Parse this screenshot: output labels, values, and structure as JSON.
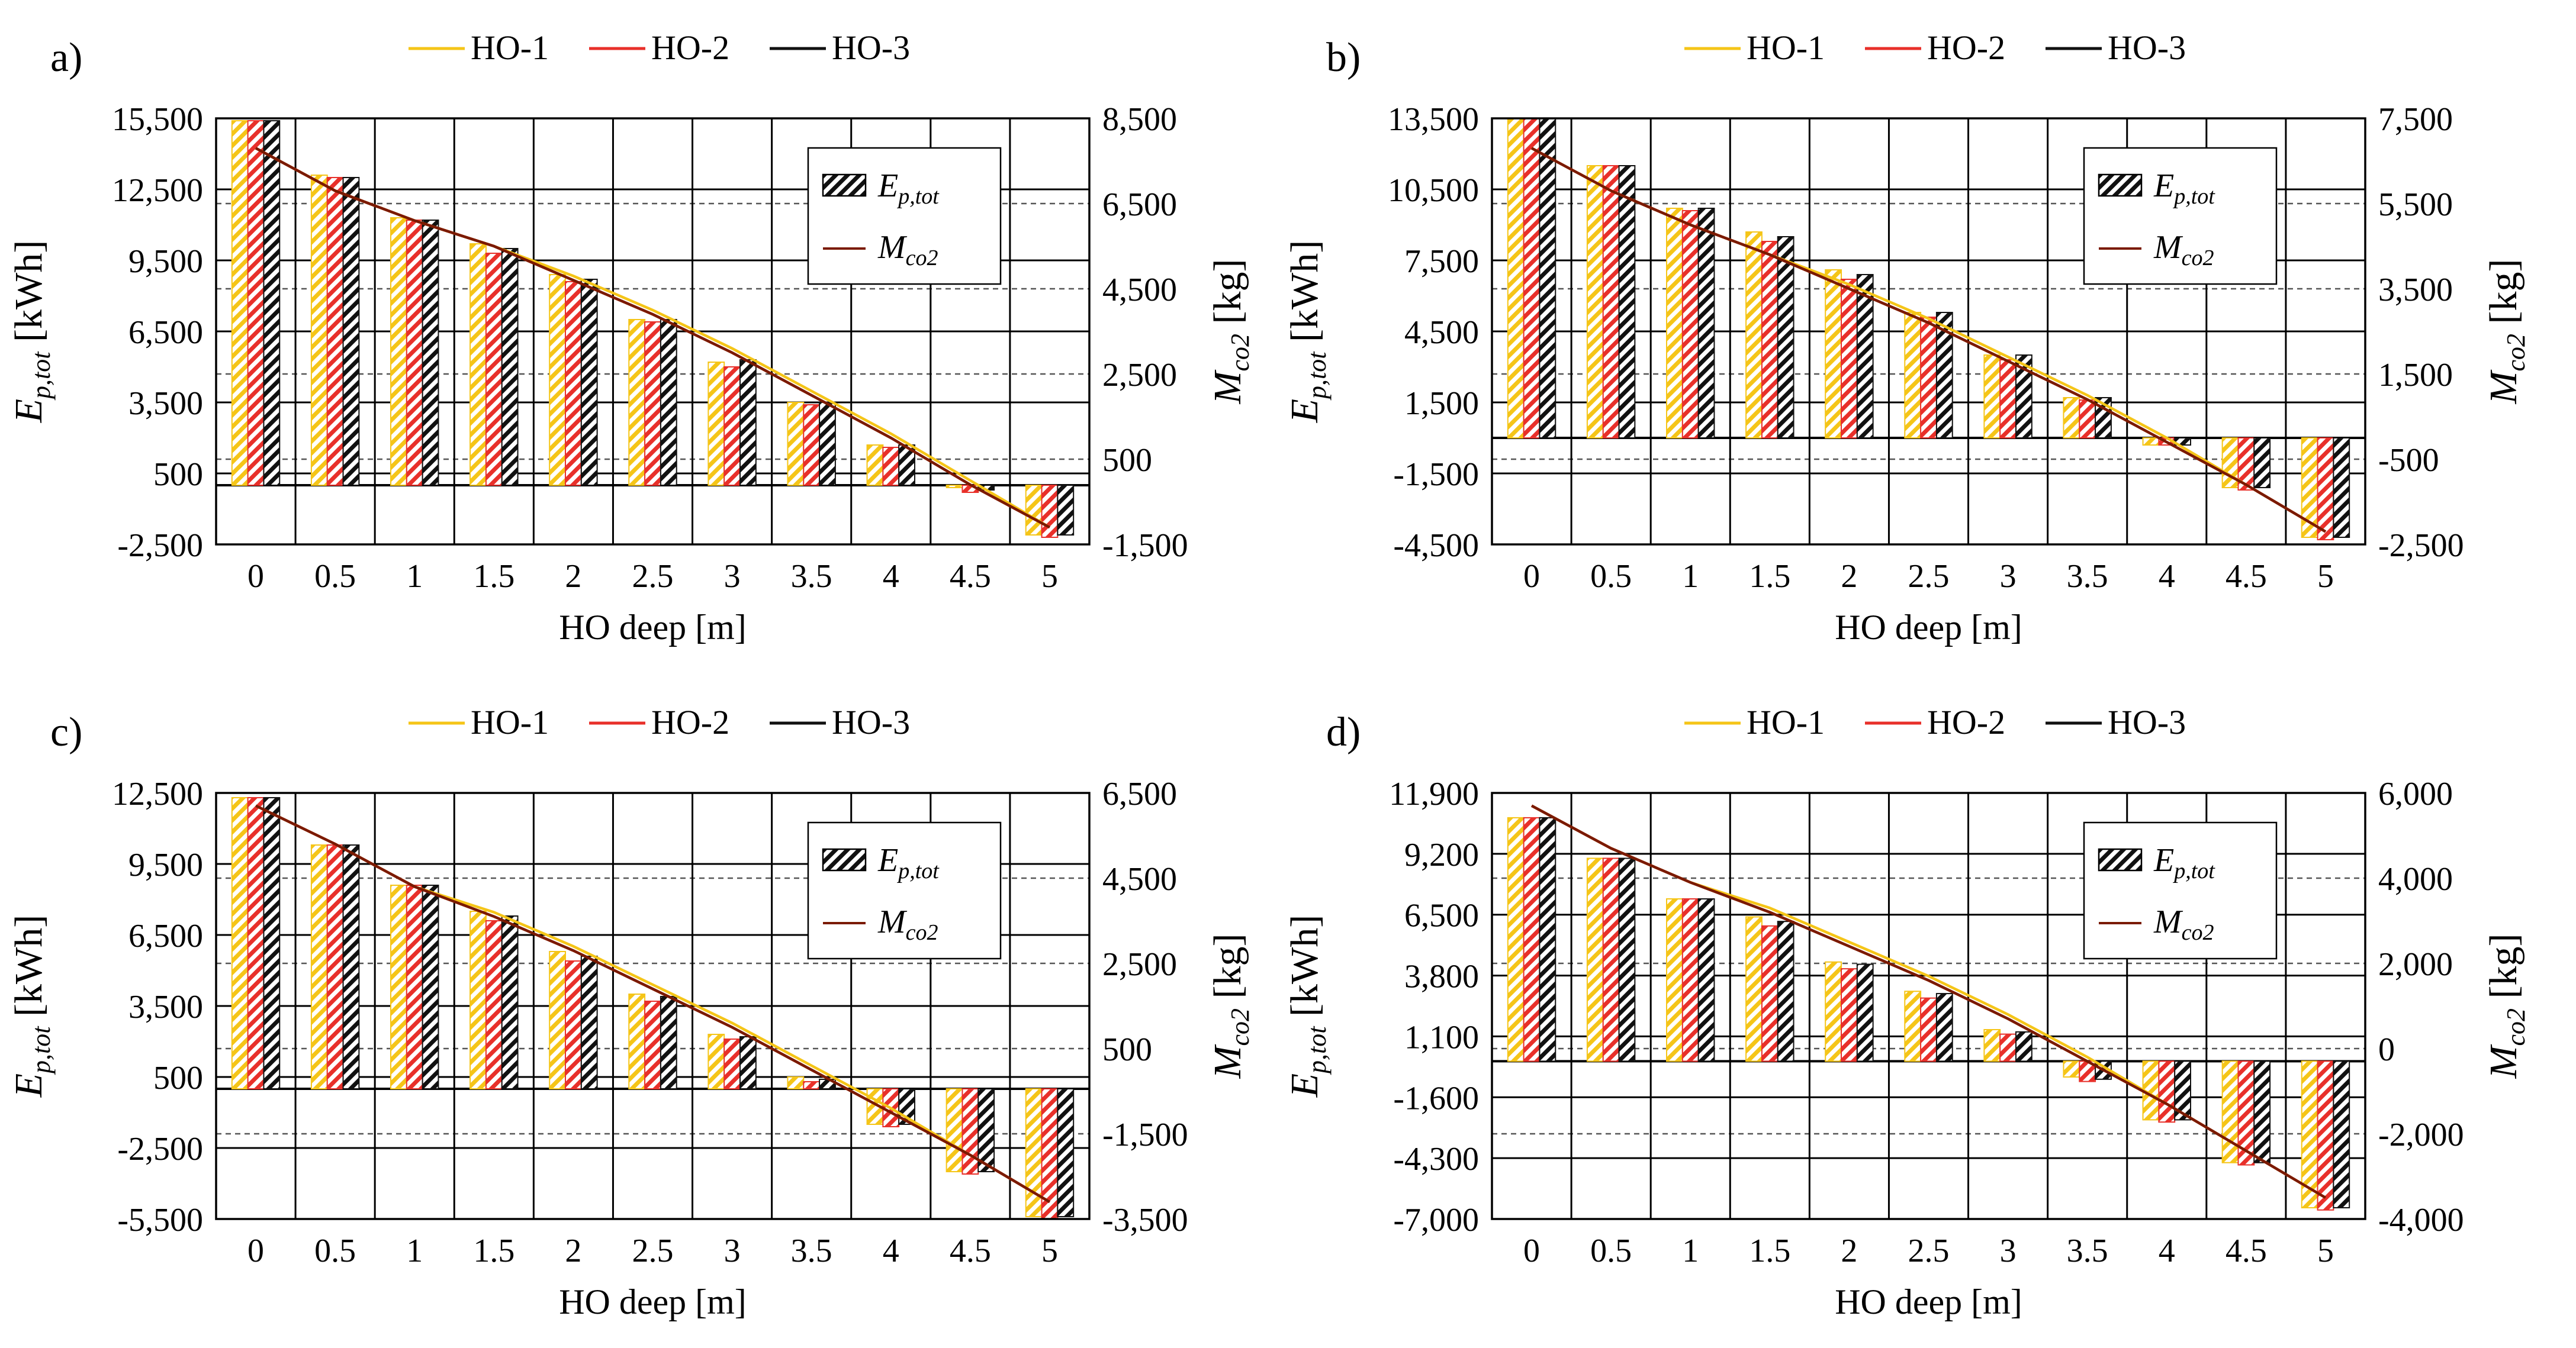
{
  "legend": {
    "series": [
      {
        "name": "HO-1",
        "color": "#F5C518"
      },
      {
        "name": "HO-2",
        "color": "#E8302A"
      },
      {
        "name": "HO-3",
        "color": "#111111"
      }
    ],
    "inner": [
      {
        "kind": "bar",
        "label": "E",
        "sub": "p,tot"
      },
      {
        "kind": "line",
        "label": "M",
        "sub": "co2"
      }
    ]
  },
  "colors": {
    "line": "#7A1A00",
    "grid": "#000000"
  },
  "chart_data": [
    {
      "panel": "a)",
      "type": "bar",
      "xlabel": "HO deep [m]",
      "ylabel": {
        "main": "E",
        "sub": "p,tot",
        "unit": " [kWh]"
      },
      "y2label": {
        "main": "M",
        "sub": "co2",
        "unit": " [kg]"
      },
      "categories": [
        "0",
        "0.5",
        "1",
        "1.5",
        "2",
        "2.5",
        "3",
        "3.5",
        "4",
        "4.5",
        "5"
      ],
      "ylim": [
        -2500,
        15500
      ],
      "yticks": [
        -2500,
        500,
        3500,
        6500,
        9500,
        12500,
        15500
      ],
      "yticklabels": [
        "-2,500",
        "500",
        "3,500",
        "6,500",
        "9,500",
        "12,500",
        "15,500"
      ],
      "y2lim": [
        -1500,
        8500
      ],
      "y2ticks": [
        -1500,
        500,
        2500,
        4500,
        6500,
        8500
      ],
      "y2ticklabels": [
        "-1,500",
        "500",
        "2,500",
        "4,500",
        "6,500",
        "8,500"
      ],
      "series": [
        {
          "name": "HO-1",
          "values": [
            15400,
            13100,
            11300,
            10200,
            8900,
            7000,
            5200,
            3500,
            1700,
            -100,
            -2100
          ]
        },
        {
          "name": "HO-2",
          "values": [
            15400,
            13000,
            11200,
            9800,
            8600,
            6900,
            5000,
            3400,
            1600,
            -300,
            -2200
          ]
        },
        {
          "name": "HO-3",
          "values": [
            15400,
            13000,
            11200,
            10000,
            8700,
            7000,
            5300,
            3500,
            1700,
            -200,
            -2100
          ]
        }
      ],
      "line_series": [
        {
          "name": "HO-1",
          "values": [
            7800,
            6800,
            6100,
            5500,
            4800,
            4000,
            3100,
            2100,
            1100,
            0,
            -1100
          ]
        },
        {
          "name": "HO-2",
          "values": [
            7800,
            6800,
            6100,
            5500,
            4700,
            3900,
            3000,
            2000,
            1000,
            -100,
            -1100
          ]
        },
        {
          "name": "HO-3",
          "values": [
            7800,
            6800,
            6100,
            5500,
            4700,
            3900,
            3000,
            2000,
            1000,
            -100,
            -1100
          ]
        }
      ]
    },
    {
      "panel": "b)",
      "type": "bar",
      "xlabel": "HO deep [m]",
      "ylabel": {
        "main": "E",
        "sub": "p,tot",
        "unit": " [kWh]"
      },
      "y2label": {
        "main": "M",
        "sub": "co2",
        "unit": " [kg]"
      },
      "categories": [
        "0",
        "0.5",
        "1",
        "1.5",
        "2",
        "2.5",
        "3",
        "3.5",
        "4",
        "4.5",
        "5"
      ],
      "ylim": [
        -4500,
        13500
      ],
      "yticks": [
        -4500,
        -1500,
        1500,
        4500,
        7500,
        10500,
        13500
      ],
      "yticklabels": [
        "-4,500",
        "-1,500",
        "1,500",
        "4,500",
        "7,500",
        "10,500",
        "13,500"
      ],
      "y2lim": [
        -2500,
        7500
      ],
      "y2ticks": [
        -2500,
        -500,
        1500,
        3500,
        5500,
        7500
      ],
      "y2ticklabels": [
        "-2,500",
        "-500",
        "1,500",
        "3,500",
        "5,500",
        "7,500"
      ],
      "series": [
        {
          "name": "HO-1",
          "values": [
            13500,
            11500,
            9700,
            8700,
            7100,
            5300,
            3500,
            1700,
            -300,
            -2100,
            -4200
          ]
        },
        {
          "name": "HO-2",
          "values": [
            13500,
            11500,
            9600,
            8300,
            6700,
            5100,
            3300,
            1600,
            -300,
            -2200,
            -4300
          ]
        },
        {
          "name": "HO-3",
          "values": [
            13500,
            11500,
            9700,
            8500,
            6900,
            5300,
            3500,
            1700,
            -300,
            -2100,
            -4200
          ]
        }
      ],
      "line_series": [
        {
          "name": "HO-1",
          "values": [
            6800,
            5800,
            5000,
            4300,
            3600,
            2800,
            1900,
            1000,
            0,
            -1100,
            -2200
          ]
        },
        {
          "name": "HO-2",
          "values": [
            6800,
            5800,
            5000,
            4300,
            3500,
            2700,
            1800,
            900,
            -100,
            -1100,
            -2200
          ]
        },
        {
          "name": "HO-3",
          "values": [
            6800,
            5800,
            5000,
            4300,
            3500,
            2700,
            1800,
            900,
            -100,
            -1100,
            -2200
          ]
        }
      ]
    },
    {
      "panel": "c)",
      "type": "bar",
      "xlabel": "HO deep [m]",
      "ylabel": {
        "main": "E",
        "sub": "p,tot",
        "unit": " [kWh]"
      },
      "y2label": {
        "main": "M",
        "sub": "co2",
        "unit": " [kg]"
      },
      "categories": [
        "0",
        "0.5",
        "1",
        "1.5",
        "2",
        "2.5",
        "3",
        "3.5",
        "4",
        "4.5",
        "5"
      ],
      "ylim": [
        -5500,
        12500
      ],
      "yticks": [
        -5500,
        -2500,
        500,
        3500,
        6500,
        9500,
        12500
      ],
      "yticklabels": [
        "-5,500",
        "-2,500",
        "500",
        "3,500",
        "6,500",
        "9,500",
        "12,500"
      ],
      "y2lim": [
        -3500,
        6500
      ],
      "y2ticks": [
        -3500,
        -1500,
        500,
        2500,
        4500,
        6500
      ],
      "y2ticklabels": [
        "-3,500",
        "-1,500",
        "500",
        "2,500",
        "4,500",
        "6,500"
      ],
      "series": [
        {
          "name": "HO-1",
          "values": [
            12300,
            10300,
            8600,
            7500,
            5800,
            4000,
            2300,
            500,
            -1500,
            -3500,
            -5400
          ]
        },
        {
          "name": "HO-2",
          "values": [
            12300,
            10300,
            8600,
            7100,
            5400,
            3700,
            2100,
            300,
            -1600,
            -3600,
            -5500
          ]
        },
        {
          "name": "HO-3",
          "values": [
            12300,
            10300,
            8600,
            7300,
            5600,
            3900,
            2200,
            400,
            -1500,
            -3500,
            -5400
          ]
        }
      ],
      "line_series": [
        {
          "name": "HO-1",
          "values": [
            6200,
            5300,
            4300,
            3700,
            2900,
            2000,
            1100,
            100,
            -900,
            -2000,
            -3100
          ]
        },
        {
          "name": "HO-2",
          "values": [
            6200,
            5300,
            4300,
            3600,
            2800,
            1900,
            1000,
            0,
            -1000,
            -2000,
            -3100
          ]
        },
        {
          "name": "HO-3",
          "values": [
            6200,
            5300,
            4300,
            3600,
            2800,
            1900,
            1000,
            0,
            -1000,
            -2000,
            -3100
          ]
        }
      ]
    },
    {
      "panel": "d)",
      "type": "bar",
      "xlabel": "HO deep [m]",
      "ylabel": {
        "main": "E",
        "sub": "p,tot",
        "unit": " [kWh]"
      },
      "y2label": {
        "main": "M",
        "sub": "co2",
        "unit": " [kg]"
      },
      "categories": [
        "0",
        "0.5",
        "1",
        "1.5",
        "2",
        "2.5",
        "3",
        "3.5",
        "4",
        "4.5",
        "5"
      ],
      "ylim": [
        -7000,
        11900
      ],
      "yticks": [
        -7000,
        -4300,
        -1600,
        1100,
        3800,
        6500,
        9200,
        11900
      ],
      "yticklabels": [
        "-7,000",
        "-4,300",
        "-1,600",
        "1,100",
        "3,800",
        "6,500",
        "9,200",
        "11,900"
      ],
      "y2lim": [
        -4000,
        6000
      ],
      "y2ticks": [
        -4000,
        -2000,
        0,
        2000,
        4000,
        6000
      ],
      "y2ticklabels": [
        "-4,000",
        "-2,000",
        "0",
        "2,000",
        "4,000",
        "6,000"
      ],
      "series": [
        {
          "name": "HO-1",
          "values": [
            10800,
            9000,
            7200,
            6400,
            4400,
            3100,
            1400,
            -700,
            -2600,
            -4500,
            -6500
          ]
        },
        {
          "name": "HO-2",
          "values": [
            10800,
            9000,
            7200,
            6000,
            4100,
            2800,
            1200,
            -900,
            -2700,
            -4600,
            -6600
          ]
        },
        {
          "name": "HO-3",
          "values": [
            10800,
            9000,
            7200,
            6200,
            4300,
            3000,
            1300,
            -800,
            -2600,
            -4500,
            -6500
          ]
        }
      ],
      "line_series": [
        {
          "name": "HO-1",
          "values": [
            5700,
            4700,
            3900,
            3300,
            2500,
            1700,
            800,
            -200,
            -1300,
            -2400,
            -3500
          ]
        },
        {
          "name": "HO-2",
          "values": [
            5700,
            4700,
            3900,
            3200,
            2400,
            1600,
            700,
            -300,
            -1300,
            -2400,
            -3500
          ]
        },
        {
          "name": "HO-3",
          "values": [
            5700,
            4700,
            3900,
            3200,
            2400,
            1600,
            700,
            -300,
            -1300,
            -2400,
            -3500
          ]
        }
      ]
    }
  ]
}
